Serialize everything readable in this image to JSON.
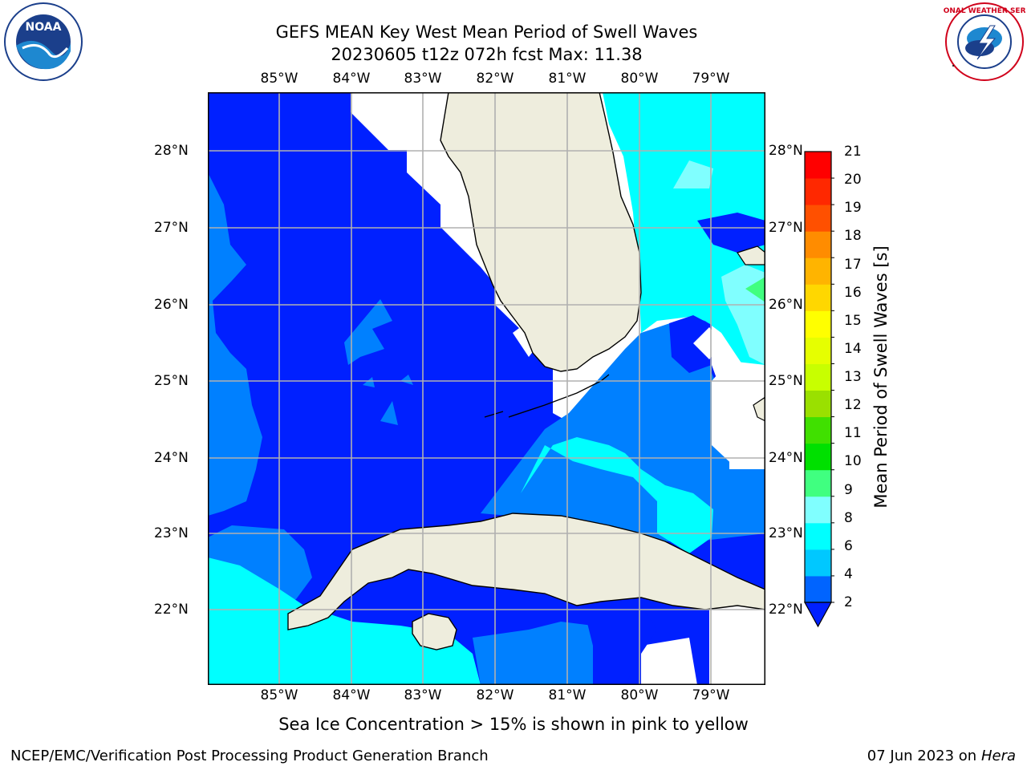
{
  "title": {
    "line1": "GEFS MEAN Key West Mean Period of Swell Waves",
    "line2": "20230605 t12z 072h fcst   Max: 11.38"
  },
  "logos": {
    "left": "NOAA",
    "right": "NATIONAL WEATHER SERVICE"
  },
  "map": {
    "lon_labels": [
      "85°W",
      "84°W",
      "83°W",
      "82°W",
      "81°W",
      "80°W",
      "79°W"
    ],
    "lat_labels": [
      "28°N",
      "27°N",
      "26°N",
      "25°N",
      "24°N",
      "23°N",
      "22°N"
    ],
    "ocean_colors": {
      "c2_4": "#0020ff",
      "c4_6": "#0080ff",
      "c6_8": "#00ffff",
      "land": "#eeeddd",
      "grid": "#b0b0b0"
    }
  },
  "colorbar": {
    "label": "Mean Period of Swell Waves [s]",
    "levels": [
      "2",
      "4",
      "6",
      "8",
      "9",
      "10",
      "11",
      "12",
      "13",
      "14",
      "15",
      "16",
      "17",
      "18",
      "19",
      "20",
      "21"
    ],
    "colors": [
      "#0064ff",
      "#00c8ff",
      "#00ffff",
      "#80ffff",
      "#40ff80",
      "#00e000",
      "#40e000",
      "#9ae000",
      "#c8ff00",
      "#e6ff00",
      "#ffff00",
      "#ffd700",
      "#ffb400",
      "#ff8c00",
      "#ff5000",
      "#ff2800",
      "#ff0000"
    ],
    "under_color": "#0020ff"
  },
  "note": "Sea Ice Concentration > 15% is shown in pink to yellow",
  "footer": {
    "left": "NCEP/EMC/Verification Post Processing Product Generation Branch",
    "date": "07 Jun 2023 on",
    "machine": "Hera"
  }
}
